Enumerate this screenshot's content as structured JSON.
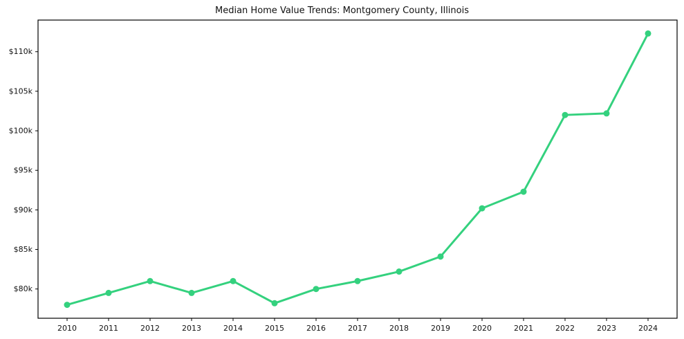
{
  "chart_data": {
    "type": "line",
    "title": "Median Home Value Trends: Montgomery County, Illinois",
    "categories": [
      "2010",
      "2011",
      "2012",
      "2013",
      "2014",
      "2015",
      "2016",
      "2017",
      "2018",
      "2019",
      "2020",
      "2021",
      "2022",
      "2023",
      "2024"
    ],
    "series": [
      {
        "name": "Median Home Value",
        "values": [
          78.0,
          79.5,
          81.0,
          79.5,
          81.0,
          78.2,
          80.0,
          81.0,
          82.2,
          84.1,
          90.2,
          92.3,
          102.0,
          102.2,
          112.3
        ]
      }
    ],
    "value_unit": "thousands of dollars",
    "ylim": [
      76.3,
      114.0
    ],
    "yticks": [
      80,
      85,
      90,
      95,
      100,
      105,
      110
    ],
    "ytick_labels": [
      "$80k",
      "$85k",
      "$90k",
      "$95k",
      "$100k",
      "$105k",
      "$110k"
    ],
    "xlabel": "",
    "ylabel": "",
    "grid": false,
    "legend_position": "none",
    "line_color": "#34d17e",
    "marker": "circle",
    "frame_color": "#000000",
    "background_color": "#ffffff"
  }
}
